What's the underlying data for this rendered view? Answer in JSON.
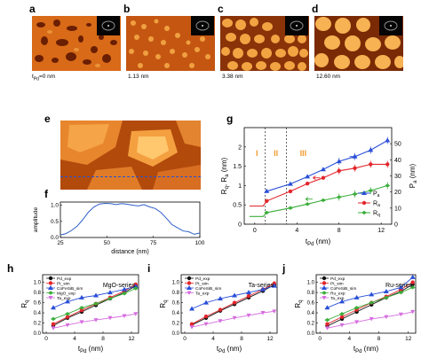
{
  "panels": {
    "a": {
      "label": "a",
      "caption": "t",
      "caption_sub": "Pd",
      "caption_rest": "=0 nm"
    },
    "b": {
      "label": "b",
      "caption": "1.13 nm"
    },
    "c": {
      "label": "c",
      "caption": "3.38 nm"
    },
    "d": {
      "label": "d",
      "caption": "12.60 nm"
    },
    "e": {
      "label": "e"
    },
    "f": {
      "label": "f"
    },
    "g": {
      "label": "g"
    },
    "h": {
      "label": "h"
    },
    "i": {
      "label": "i"
    },
    "j": {
      "label": "j"
    }
  },
  "colors": {
    "blue": "#2a4fd8",
    "red": "#e3262c",
    "green": "#3cae3c",
    "black": "#111111",
    "orange": "#f29a2e",
    "violet": "#d66de0",
    "line_f": "#2f5fc8"
  },
  "chart_data": [
    {
      "id": "f",
      "type": "line",
      "xlabel": "distance (nm)",
      "ylabel": "amplitude",
      "xlim": [
        25,
        100
      ],
      "ylim": [
        0,
        1.1
      ],
      "xticks": [
        "25",
        "50",
        "75",
        "100"
      ],
      "yticks": [
        "0.0",
        "0.5",
        "1.0"
      ],
      "x": [
        25,
        28,
        31,
        34,
        37,
        40,
        43,
        46,
        49,
        52,
        55,
        58,
        61,
        64,
        67,
        70,
        73,
        76,
        79,
        82,
        85,
        88,
        91,
        94,
        97,
        100
      ],
      "series": [
        {
          "values": [
            0.08,
            0.12,
            0.22,
            0.35,
            0.55,
            0.78,
            0.95,
            1.04,
            1.06,
            1.05,
            1.02,
            1.05,
            1.03,
            1.0,
            0.98,
            1.02,
            0.95,
            0.9,
            0.78,
            0.6,
            0.4,
            0.3,
            0.2,
            0.18,
            0.1,
            0.14
          ]
        }
      ]
    },
    {
      "id": "g",
      "type": "line",
      "xlabel": "t",
      "xlabel_sub": "Pd",
      "xlabel_rest": " (nm)",
      "ylabel": "R",
      "ylabel_sub1": "q",
      "ylabel_mid": ", R",
      "ylabel_sub2": "a",
      "ylabel_rest": " (nm)",
      "ylabel_right": "P",
      "ylabel_right_sub": "a",
      "ylabel_right_rest": " (nm)",
      "xlim": [
        -1,
        13
      ],
      "ylim": [
        0,
        2.5
      ],
      "y2lim": [
        0,
        60
      ],
      "xticks": [
        "0",
        "4",
        "8",
        "12"
      ],
      "yticks": [
        "0",
        "0.5",
        "1",
        "1.5",
        "2"
      ],
      "y2ticks": [
        "0",
        "10",
        "20",
        "30",
        "40",
        "50"
      ],
      "regions": [
        "I",
        "II",
        "III"
      ],
      "region_bounds": [
        1.0,
        3.0
      ],
      "legend": [
        "P",
        "R",
        "R"
      ],
      "legend_subs": [
        "a",
        "a",
        "q"
      ],
      "series": [
        {
          "color": "blue",
          "axis": "right",
          "x": [
            1.13,
            3.38,
            5,
            6.5,
            8,
            9.5,
            11,
            12.6
          ],
          "values": [
            20.5,
            25,
            29.5,
            34,
            39,
            42,
            46,
            52
          ]
        },
        {
          "color": "red",
          "axis": "left",
          "x": [
            -0.5,
            0,
            0.8,
            1.13,
            3.38,
            5,
            6.5,
            8,
            9.5,
            11,
            12.6
          ],
          "values": [
            0.47,
            0.47,
            0.47,
            0.6,
            0.85,
            1.05,
            1.2,
            1.38,
            1.45,
            1.55,
            1.55
          ]
        },
        {
          "color": "green",
          "axis": "left",
          "x": [
            -0.5,
            0,
            0.8,
            1.13,
            3.38,
            5,
            6.5,
            8,
            9.5,
            11,
            12.6
          ],
          "values": [
            0.2,
            0.2,
            0.2,
            0.3,
            0.42,
            0.52,
            0.62,
            0.7,
            0.78,
            0.87,
            1.0
          ]
        }
      ]
    },
    {
      "id": "h",
      "type": "line",
      "xlabel": "t",
      "xlabel_sub": "Pd",
      "xlabel_rest": " (nm)",
      "ylabel": "R",
      "ylabel_sub": "q",
      "title": "MgO-series",
      "xlim": [
        -0.5,
        13
      ],
      "ylim": [
        0,
        1.15
      ],
      "xticks": [
        "0",
        "4",
        "8",
        "12"
      ],
      "yticks": [
        "0.0",
        "0.2",
        "0.4",
        "0.6",
        "0.8",
        "1.0"
      ],
      "legend": [
        "Pd_exp",
        "Pt_sim",
        "CoFeSiB_sim",
        "MgO_exp",
        "Ta_exp"
      ],
      "series": [
        {
          "color": "black",
          "x": [
            1,
            3,
            5,
            7,
            9,
            11,
            12.6
          ],
          "values": [
            0.15,
            0.3,
            0.42,
            0.55,
            0.68,
            0.8,
            0.93
          ]
        },
        {
          "color": "red",
          "x": [
            1,
            3,
            5,
            7,
            9,
            11,
            12.6
          ],
          "values": [
            0.18,
            0.32,
            0.45,
            0.58,
            0.7,
            0.83,
            0.96
          ]
        },
        {
          "color": "blue",
          "x": [
            1,
            3,
            5,
            7,
            9,
            11,
            12.6
          ],
          "values": [
            0.5,
            0.62,
            0.7,
            0.74,
            0.8,
            0.86,
            0.92
          ]
        },
        {
          "color": "green",
          "x": [
            1,
            3,
            5,
            7,
            9,
            11,
            12.6
          ],
          "values": [
            0.28,
            0.38,
            0.5,
            0.58,
            0.68,
            0.78,
            0.88
          ]
        },
        {
          "color": "violet",
          "x": [
            1,
            3,
            5,
            7,
            9,
            11,
            12.6
          ],
          "values": [
            0.1,
            0.16,
            0.22,
            0.26,
            0.3,
            0.34,
            0.38
          ]
        }
      ]
    },
    {
      "id": "i",
      "type": "line",
      "xlabel": "t",
      "xlabel_sub": "Pd",
      "xlabel_rest": " (nm)",
      "ylabel": "R",
      "ylabel_sub": "q",
      "title": "Ta-series",
      "xlim": [
        -0.5,
        13
      ],
      "ylim": [
        0,
        1.15
      ],
      "xticks": [
        "0",
        "4",
        "8",
        "12"
      ],
      "yticks": [
        "0.0",
        "0.2",
        "0.4",
        "0.6",
        "0.8",
        "1.0"
      ],
      "legend": [
        "Pd_exp",
        "Pt_sim",
        "CoFeSiB_sim",
        "Ta_exp"
      ],
      "series": [
        {
          "color": "black",
          "x": [
            1,
            3,
            5,
            7,
            9,
            11,
            12.6
          ],
          "values": [
            0.16,
            0.3,
            0.44,
            0.57,
            0.7,
            0.83,
            0.95
          ]
        },
        {
          "color": "red",
          "x": [
            1,
            3,
            5,
            7,
            9,
            11,
            12.6
          ],
          "values": [
            0.18,
            0.33,
            0.46,
            0.6,
            0.73,
            0.86,
            0.98
          ]
        },
        {
          "color": "blue",
          "x": [
            1,
            3,
            5,
            7,
            9,
            11,
            12.6
          ],
          "values": [
            0.48,
            0.6,
            0.68,
            0.74,
            0.8,
            0.86,
            0.93
          ]
        },
        {
          "color": "violet",
          "x": [
            1,
            3,
            5,
            7,
            9,
            11,
            12.6
          ],
          "values": [
            0.12,
            0.18,
            0.24,
            0.3,
            0.35,
            0.4,
            0.43
          ]
        }
      ]
    },
    {
      "id": "j",
      "type": "line",
      "xlabel": "t",
      "xlabel_sub": "Pd",
      "xlabel_rest": " (nm)",
      "ylabel": "R",
      "ylabel_sub": "q",
      "title": "Ru-series",
      "xlim": [
        -0.5,
        13
      ],
      "ylim": [
        0,
        1.15
      ],
      "xticks": [
        "0",
        "4",
        "8",
        "12"
      ],
      "yticks": [
        "0.0",
        "0.2",
        "0.4",
        "0.6",
        "0.8",
        "1.0"
      ],
      "legend": [
        "Pd_exp",
        "Pt_sim",
        "CoFeSiB_sim",
        "Ru_exp",
        "Ta_exp"
      ],
      "series": [
        {
          "color": "black",
          "x": [
            1,
            3,
            5,
            7,
            9,
            11,
            12.6
          ],
          "values": [
            0.14,
            0.28,
            0.42,
            0.56,
            0.7,
            0.82,
            0.96
          ]
        },
        {
          "color": "red",
          "x": [
            1,
            3,
            5,
            7,
            9,
            11,
            12.6
          ],
          "values": [
            0.18,
            0.32,
            0.46,
            0.6,
            0.72,
            0.86,
            1.0
          ]
        },
        {
          "color": "blue",
          "x": [
            1,
            3,
            5,
            7,
            9,
            11,
            12.6
          ],
          "values": [
            0.5,
            0.62,
            0.7,
            0.76,
            0.82,
            0.9,
            1.1
          ]
        },
        {
          "color": "green",
          "x": [
            1,
            3,
            5,
            7,
            9,
            11,
            12.6
          ],
          "values": [
            0.26,
            0.38,
            0.5,
            0.6,
            0.7,
            0.8,
            0.9
          ]
        },
        {
          "color": "violet",
          "x": [
            1,
            3,
            5,
            7,
            9,
            11,
            12.6
          ],
          "values": [
            0.1,
            0.16,
            0.22,
            0.28,
            0.32,
            0.37,
            0.42
          ]
        }
      ]
    }
  ]
}
